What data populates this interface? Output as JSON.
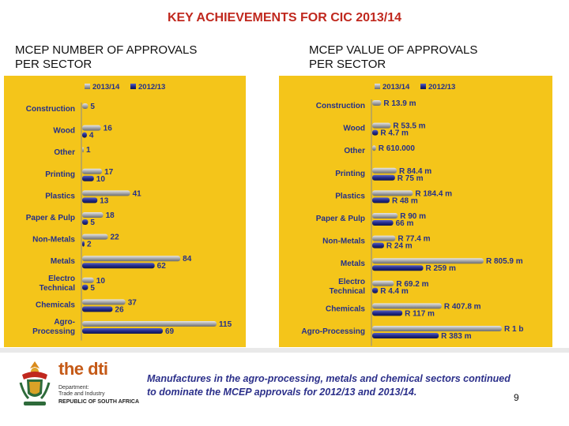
{
  "slide": {
    "title": "KEY ACHIEVEMENTS FOR CIC 2013/14",
    "page_number": "9"
  },
  "footer": {
    "caption": "Manufactures in the agro-processing, metals and chemical sectors continued to dominate the MCEP approvals for 2012/13 and 2013/14.",
    "logo_brand_prefix": "the ",
    "logo_brand": "dti",
    "department": "Department:\nTrade and Industry",
    "country": "REPUBLIC OF SOUTH AFRICA"
  },
  "colors": {
    "panel": "#f4c51a",
    "series_2013": "#a8a8a8",
    "series_2012": "#232b8a",
    "title": "#c0281e",
    "label": "#24308a"
  },
  "chart_data": [
    {
      "type": "bar",
      "orientation": "horizontal",
      "title": "MCEP NUMBER OF APPROVALS\n PER SECTOR",
      "categories": [
        "Construction",
        "Wood",
        "Other",
        "Printing",
        "Plastics",
        "Paper & Pulp",
        "Non-Metals",
        "Metals",
        "Electro\nTechnical",
        "Chemicals",
        "Agro-\nProcessing"
      ],
      "series": [
        {
          "name": "2013/14",
          "values": [
            5,
            16,
            1,
            17,
            41,
            18,
            22,
            84,
            10,
            37,
            115
          ],
          "labels": [
            "5",
            "16",
            "1",
            "17",
            "41",
            "18",
            "22",
            "84",
            "10",
            "37",
            "115"
          ]
        },
        {
          "name": "2012/13",
          "values": [
            0,
            4,
            0,
            10,
            13,
            5,
            2,
            62,
            5,
            26,
            69
          ],
          "labels": [
            "",
            "4",
            "",
            "10",
            "13",
            "5",
            "2",
            "62",
            "5",
            "26",
            "69"
          ]
        }
      ],
      "xlim": [
        0,
        115
      ],
      "legend": "top"
    },
    {
      "type": "bar",
      "orientation": "horizontal",
      "title": "MCEP VALUE OF APPROVALS\n PER SECTOR",
      "categories": [
        "Construction",
        "Wood",
        "Other",
        "Printing",
        "Plastics",
        "Paper & Pulp",
        "Non-Metals",
        "Metals",
        "Electro\nTechnical",
        "Chemicals",
        "Agro-Processing"
      ],
      "series": [
        {
          "name": "2013/14",
          "values": [
            13.9,
            53.5,
            0.61,
            84.4,
            184.4,
            90,
            77.4,
            805.9,
            69.2,
            407.8,
            1000
          ],
          "labels": [
            "R 13.9 m",
            "R 53.5 m",
            "R 610.000",
            "R 84.4 m",
            "R 184.4 m",
            "R 90 m",
            "R 77.4 m",
            "R 805.9 m",
            "R 69.2 m",
            "R 407.8 m",
            "R 1 b"
          ]
        },
        {
          "name": "2012/13",
          "values": [
            0,
            4.7,
            0,
            75,
            48,
            66,
            24,
            259,
            4.4,
            117,
            383
          ],
          "labels": [
            "",
            "R 4.7 m",
            "",
            "R 75 m",
            "R 48 m",
            "66 m",
            "R 24 m",
            "R 259 m",
            "R 4.4 m",
            "R 117 m",
            "R 383 m"
          ]
        }
      ],
      "units": "R million",
      "legend": "top"
    }
  ]
}
